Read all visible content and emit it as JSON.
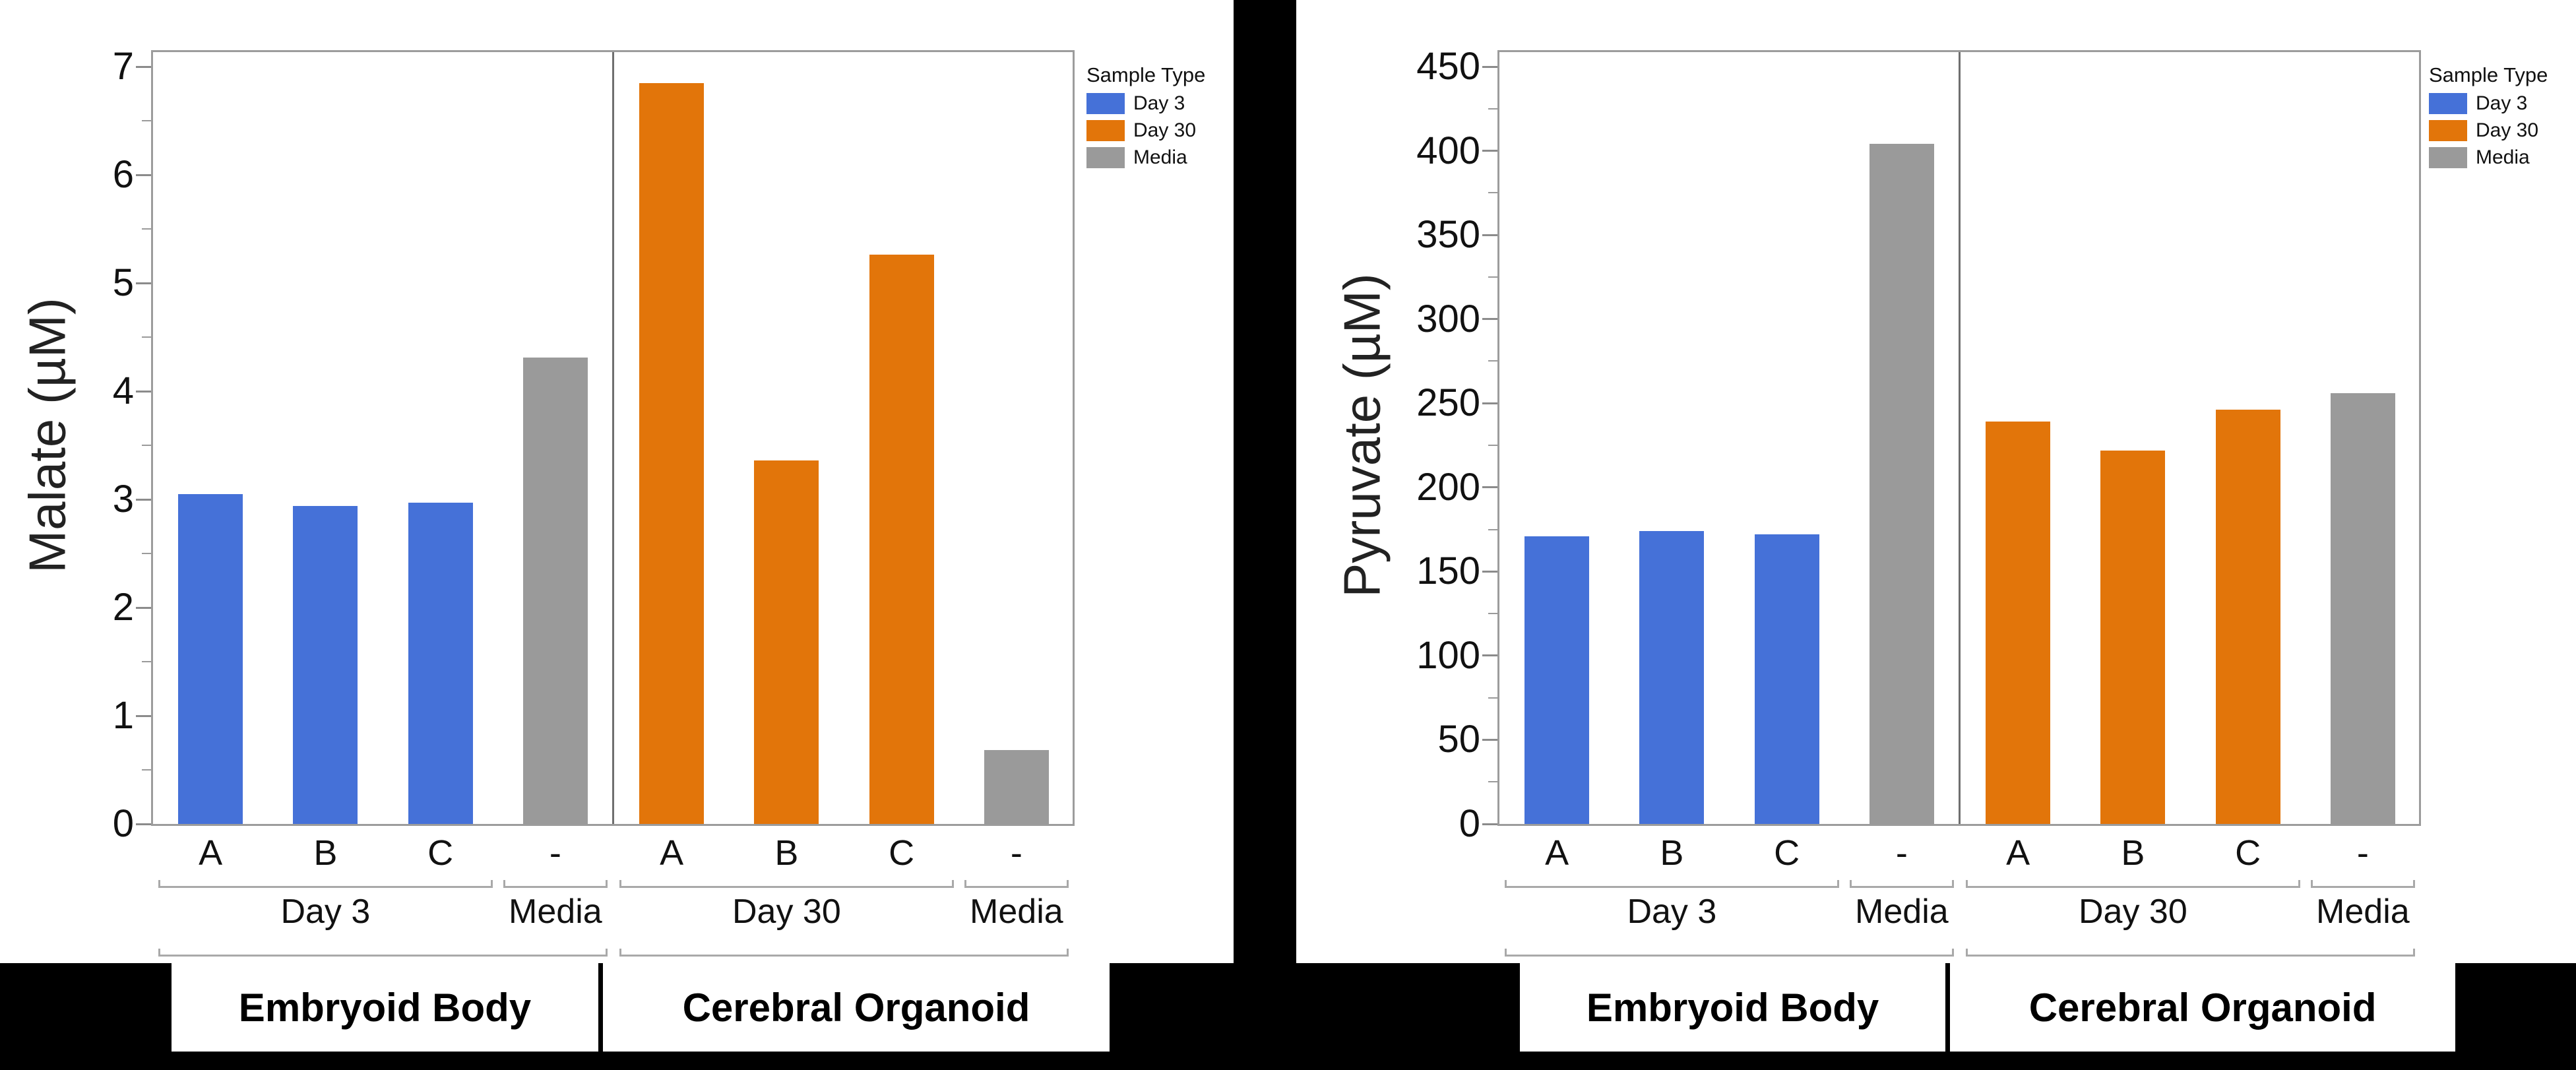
{
  "legend": {
    "title": "Sample Type",
    "items": [
      {
        "label": "Day 3",
        "color": "#4571D8"
      },
      {
        "label": "Day 30",
        "color": "#E2750A"
      },
      {
        "label": "Media",
        "color": "#9A9A9A"
      }
    ]
  },
  "colors": {
    "day3_blue": "#4571D8",
    "day30_orange": "#E2750A",
    "media_gray": "#9A9A9A",
    "axis_gray": "#9c9c9c",
    "background": "#000000"
  },
  "chart_data": [
    {
      "type": "bar",
      "title": "",
      "xlabel": "",
      "ylabel": "Malate (µM)",
      "ylim": [
        0,
        7
      ],
      "ytick_step": 1,
      "yminor_step": 0.5,
      "grid": false,
      "legend_position": "right",
      "categories": [
        "A",
        "B",
        "C",
        "-",
        "A",
        "B",
        "C",
        "-"
      ],
      "series_by_bar": [
        "Day 3",
        "Day 3",
        "Day 3",
        "Media",
        "Day 30",
        "Day 30",
        "Day 30",
        "Media"
      ],
      "values": [
        3.05,
        2.94,
        2.97,
        4.31,
        6.85,
        3.36,
        5.26,
        0.68
      ],
      "group_labels": [
        {
          "label": "Day 3",
          "span": [
            0,
            2
          ]
        },
        {
          "label": "Media",
          "span": [
            3,
            3
          ]
        },
        {
          "label": "Day 30",
          "span": [
            4,
            6
          ]
        },
        {
          "label": "Media",
          "span": [
            7,
            7
          ]
        }
      ],
      "super_groups": [
        {
          "label": "Embryoid Body",
          "span": [
            0,
            3
          ]
        },
        {
          "label": "Cerebral Organoid",
          "span": [
            4,
            7
          ]
        }
      ]
    },
    {
      "type": "bar",
      "title": "",
      "xlabel": "",
      "ylabel": "Pyruvate (µM)",
      "ylim": [
        0,
        450
      ],
      "ytick_step": 50,
      "yminor_step": 25,
      "grid": false,
      "legend_position": "right",
      "categories": [
        "A",
        "B",
        "C",
        "-",
        "A",
        "B",
        "C",
        "-"
      ],
      "series_by_bar": [
        "Day 3",
        "Day 3",
        "Day 3",
        "Media",
        "Day 30",
        "Day 30",
        "Day 30",
        "Media"
      ],
      "values": [
        171,
        174,
        172,
        404,
        239,
        222,
        246,
        256
      ],
      "group_labels": [
        {
          "label": "Day 3",
          "span": [
            0,
            2
          ]
        },
        {
          "label": "Media",
          "span": [
            3,
            3
          ]
        },
        {
          "label": "Day 30",
          "span": [
            4,
            6
          ]
        },
        {
          "label": "Media",
          "span": [
            7,
            7
          ]
        }
      ],
      "super_groups": [
        {
          "label": "Embryoid Body",
          "span": [
            0,
            3
          ]
        },
        {
          "label": "Cerebral Organoid",
          "span": [
            4,
            7
          ]
        }
      ]
    }
  ]
}
